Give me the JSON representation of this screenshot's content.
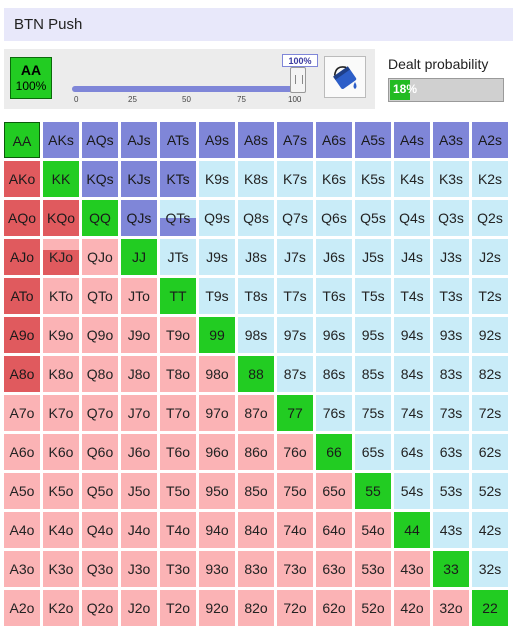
{
  "header": {
    "title": "BTN Push"
  },
  "selected_hand": {
    "hand": "AA",
    "percent": "100%"
  },
  "slider": {
    "value": "100%",
    "fraction": 1.0,
    "ticks": [
      "0",
      "25",
      "50",
      "75",
      "100"
    ]
  },
  "dealt": {
    "label": "Dealt probability",
    "value": "18%",
    "fraction": 0.18
  },
  "icons": {
    "paint": "paint-bucket-icon"
  },
  "colors": {
    "pair_push": "#22cc22",
    "suited_push": "#7f86d8",
    "offsuit_push": "#e05a5e",
    "suited_fold": "#c9ecf8",
    "offsuit_fold": "#fbb3b5"
  },
  "ranks": [
    "A",
    "K",
    "Q",
    "J",
    "T",
    "9",
    "8",
    "7",
    "6",
    "5",
    "4",
    "3",
    "2"
  ],
  "grid": [
    [
      "AA",
      "AKs",
      "AQs",
      "AJs",
      "ATs",
      "A9s",
      "A8s",
      "A7s",
      "A6s",
      "A5s",
      "A4s",
      "A3s",
      "A2s"
    ],
    [
      "AKo",
      "KK",
      "KQs",
      "KJs",
      "KTs",
      "K9s",
      "K8s",
      "K7s",
      "K6s",
      "K5s",
      "K4s",
      "K3s",
      "K2s"
    ],
    [
      "AQo",
      "KQo",
      "QQ",
      "QJs",
      "QTs",
      "Q9s",
      "Q8s",
      "Q7s",
      "Q6s",
      "Q5s",
      "Q4s",
      "Q3s",
      "Q2s"
    ],
    [
      "AJo",
      "KJo",
      "QJo",
      "JJ",
      "JTs",
      "J9s",
      "J8s",
      "J7s",
      "J6s",
      "J5s",
      "J4s",
      "J3s",
      "J2s"
    ],
    [
      "ATo",
      "KTo",
      "QTo",
      "JTo",
      "TT",
      "T9s",
      "T8s",
      "T7s",
      "T6s",
      "T5s",
      "T4s",
      "T3s",
      "T2s"
    ],
    [
      "A9o",
      "K9o",
      "Q9o",
      "J9o",
      "T9o",
      "99",
      "98s",
      "97s",
      "96s",
      "95s",
      "94s",
      "93s",
      "92s"
    ],
    [
      "A8o",
      "K8o",
      "Q8o",
      "J8o",
      "T8o",
      "98o",
      "88",
      "87s",
      "86s",
      "85s",
      "84s",
      "83s",
      "82s"
    ],
    [
      "A7o",
      "K7o",
      "Q7o",
      "J7o",
      "T7o",
      "97o",
      "87o",
      "77",
      "76s",
      "75s",
      "74s",
      "73s",
      "72s"
    ],
    [
      "A6o",
      "K6o",
      "Q6o",
      "J6o",
      "T6o",
      "96o",
      "86o",
      "76o",
      "66",
      "65s",
      "64s",
      "63s",
      "62s"
    ],
    [
      "A5o",
      "K5o",
      "Q5o",
      "J5o",
      "T5o",
      "95o",
      "85o",
      "75o",
      "65o",
      "55",
      "54s",
      "53s",
      "52s"
    ],
    [
      "A4o",
      "K4o",
      "Q4o",
      "J4o",
      "T4o",
      "94o",
      "84o",
      "74o",
      "64o",
      "54o",
      "44",
      "43s",
      "42s"
    ],
    [
      "A3o",
      "K3o",
      "Q3o",
      "J3o",
      "T3o",
      "93o",
      "83o",
      "73o",
      "63o",
      "53o",
      "43o",
      "33",
      "32s"
    ],
    [
      "A2o",
      "K2o",
      "Q2o",
      "J2o",
      "T2o",
      "92o",
      "82o",
      "72o",
      "62o",
      "52o",
      "42o",
      "32o",
      "22"
    ]
  ],
  "push_frequency": {
    "AA": 1,
    "KK": 1,
    "QQ": 1,
    "JJ": 1,
    "TT": 1,
    "99": 1,
    "88": 1,
    "77": 1,
    "66": 1,
    "55": 1,
    "44": 1,
    "33": 1,
    "22": 1,
    "AKs": 1,
    "AQs": 1,
    "AJs": 1,
    "ATs": 1,
    "A9s": 1,
    "A8s": 1,
    "A7s": 1,
    "A6s": 1,
    "A5s": 1,
    "A4s": 1,
    "A3s": 1,
    "A2s": 1,
    "KQs": 1,
    "KJs": 1,
    "KTs": 1,
    "QJs": 1,
    "QTs": 0.5,
    "AKo": 1,
    "AQo": 1,
    "AJo": 1,
    "ATo": 1,
    "A9o": 1,
    "A8o": 1,
    "KQo": 1,
    "KJo": 0.7
  }
}
